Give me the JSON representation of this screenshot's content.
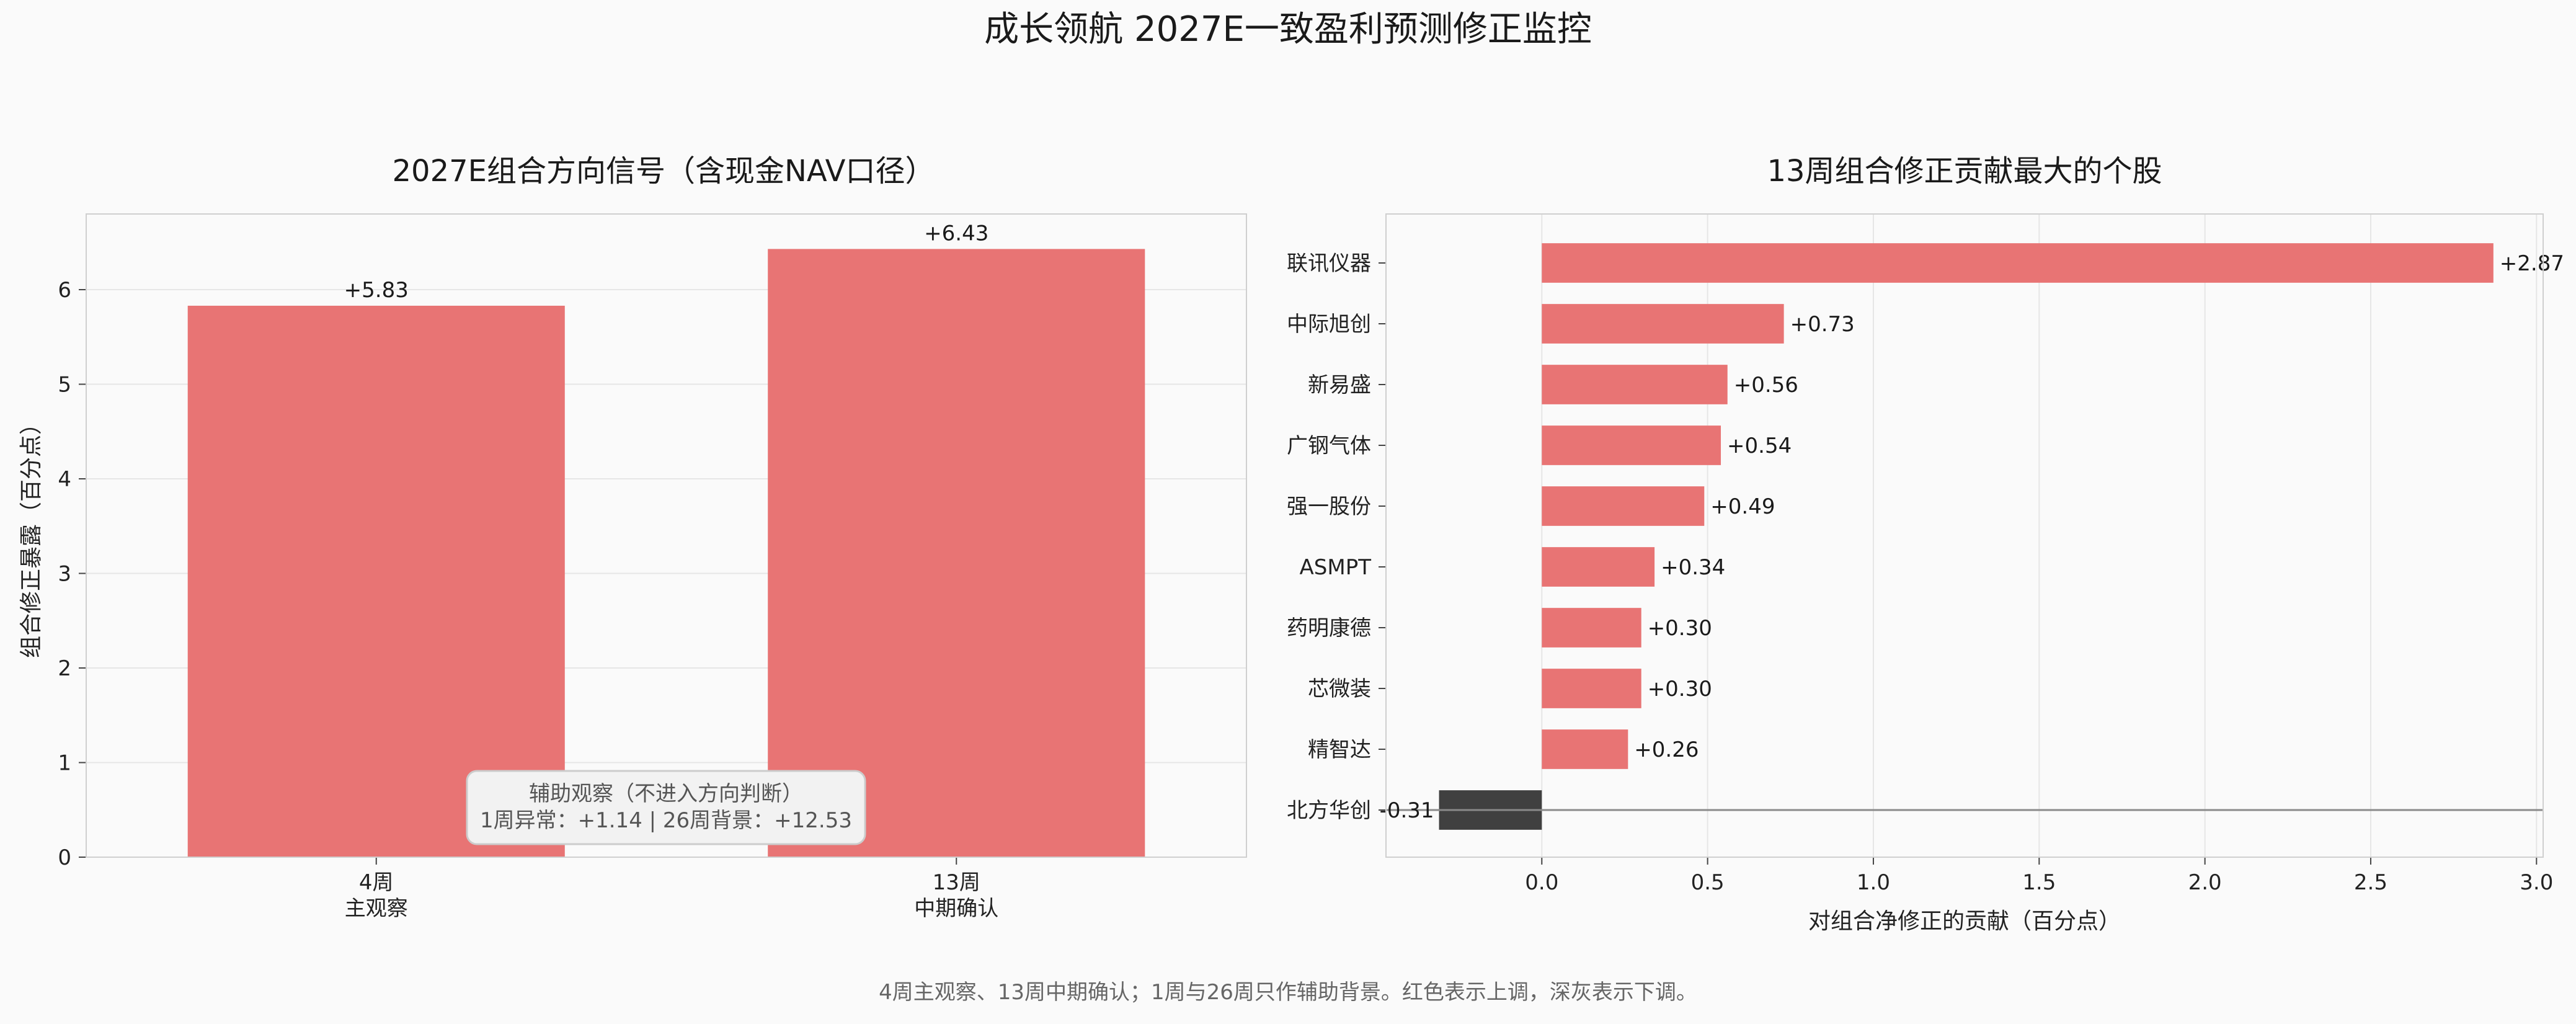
{
  "title": "成长领航  2027E一致盈利预测修正监控",
  "footnote": "4周主观察、13周中期确认；1周与26周只作辅助背景。红色表示上调，深灰表示下调。",
  "colors": {
    "up": "#e87474",
    "down": "#404040",
    "zero_line": "#8a8a8a",
    "note_bg": "#f2f2f2",
    "note_border": "#cccccc"
  },
  "chart_data": [
    {
      "type": "bar",
      "title": "2027E组合方向信号（含现金NAV口径）",
      "xlabel": "",
      "ylabel": "组合修正暴露（百分点）",
      "categories": [
        "4周\n主观察",
        "13周\n中期确认"
      ],
      "values": [
        5.83,
        6.43
      ],
      "value_labels": [
        "+5.83",
        "+6.43"
      ],
      "ylim": [
        0,
        6.8
      ],
      "yticks": [
        0,
        1,
        2,
        3,
        4,
        5,
        6
      ],
      "grid": "y",
      "annotation": {
        "line1": "辅助观察（不进入方向判断）",
        "line2": "1周异常：+1.14  |  26周背景：+12.53"
      }
    },
    {
      "type": "bar",
      "orientation": "horizontal",
      "title": "13周组合修正贡献最大的个股",
      "xlabel": "对组合净修正的贡献（百分点）",
      "ylabel": "",
      "categories": [
        "联讯仪器",
        "中际旭创",
        "新易盛",
        "广钢气体",
        "强一股份",
        "ASMPT",
        "药明康德",
        "芯微装",
        "精智达",
        "北方华创"
      ],
      "values": [
        2.87,
        0.73,
        0.56,
        0.54,
        0.49,
        0.34,
        0.3,
        0.3,
        0.26,
        -0.31
      ],
      "value_labels": [
        "+2.87",
        "+0.73",
        "+0.56",
        "+0.54",
        "+0.49",
        "+0.34",
        "+0.30",
        "+0.30",
        "+0.26",
        "-0.31"
      ],
      "xlim": [
        -0.47,
        3.02
      ],
      "xticks": [
        0.0,
        0.5,
        1.0,
        1.5,
        2.0,
        2.5,
        3.0
      ],
      "xtick_labels": [
        "0.0",
        "0.5",
        "1.0",
        "1.5",
        "2.0",
        "2.5",
        "3.0"
      ],
      "grid": "x"
    }
  ]
}
